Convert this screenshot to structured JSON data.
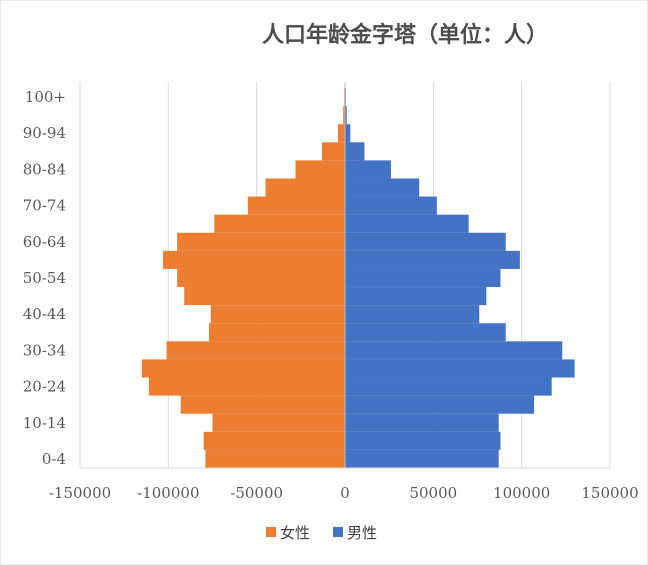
{
  "chart_data": {
    "type": "bar",
    "orientation": "horizontal",
    "layout": "population-pyramid",
    "title": "人口年龄金字塔（单位：人）",
    "categories": [
      "0-4",
      "5-9",
      "10-14",
      "15-19",
      "20-24",
      "25-29",
      "30-34",
      "35-39",
      "40-44",
      "45-49",
      "50-54",
      "55-59",
      "60-64",
      "65-69",
      "70-74",
      "75-79",
      "80-84",
      "85-89",
      "90-94",
      "95-99",
      "100+"
    ],
    "y_tick_labels": [
      "0-4",
      "10-14",
      "20-24",
      "30-34",
      "40-44",
      "50-54",
      "60-64",
      "70-74",
      "80-84",
      "90-94",
      "100+"
    ],
    "series": [
      {
        "name": "女性",
        "color": "#ED7D31",
        "values": [
          -79000,
          -80000,
          -75000,
          -93000,
          -111000,
          -115000,
          -101000,
          -77000,
          -76000,
          -91000,
          -95000,
          -103000,
          -95000,
          -74000,
          -55000,
          -45000,
          -28000,
          -13000,
          -4000,
          -1000,
          -500
        ]
      },
      {
        "name": "男性",
        "color": "#4472C4",
        "values": [
          87000,
          88000,
          87000,
          107000,
          117000,
          130000,
          123000,
          91000,
          76000,
          80000,
          88000,
          99000,
          91000,
          70000,
          52000,
          42000,
          26000,
          11000,
          3000,
          1000,
          500
        ]
      }
    ],
    "x_ticks": [
      -150000,
      -100000,
      -50000,
      0,
      50000,
      100000,
      150000
    ],
    "x_tick_labels": [
      "-150000",
      "-100000",
      "-50000",
      "0",
      "50000",
      "100000",
      "150000"
    ],
    "xlim": [
      -150000,
      150000
    ],
    "grid": "vertical",
    "legend": "bottom",
    "grid_color": "#d9d9d9",
    "axis_color": "#bfbfbf"
  }
}
